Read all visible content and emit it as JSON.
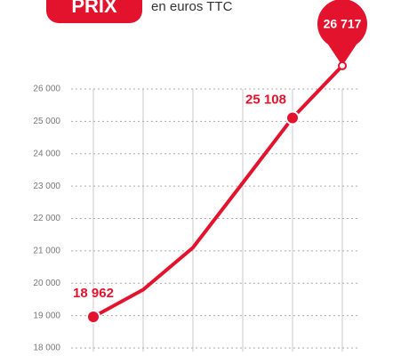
{
  "chart_data": {
    "type": "line",
    "title": "PRIX",
    "subtitle": "en euros TTC",
    "categories": [
      null,
      null,
      null,
      null,
      null,
      null
    ],
    "series": [
      {
        "name": null,
        "color": "#e3122d",
        "values": [
          18962,
          19800,
          21100,
          23100,
          25108,
          26717
        ],
        "value_labels": [
          "18 962",
          null,
          null,
          null,
          "25 108",
          "26 717"
        ]
      }
    ],
    "ylim": [
      18000,
      26000
    ],
    "yticks": [
      {
        "value": 18000,
        "label": "18 000"
      },
      {
        "value": 19000,
        "label": "19 000"
      },
      {
        "value": 20000,
        "label": "20 000"
      },
      {
        "value": 21000,
        "label": "21 000"
      },
      {
        "value": 22000,
        "label": "22 000"
      },
      {
        "value": 23000,
        "label": "23 000"
      },
      {
        "value": 24000,
        "label": "24 000"
      },
      {
        "value": 25000,
        "label": "25 000"
      },
      {
        "value": 26000,
        "label": "26 000"
      }
    ],
    "grid": true
  }
}
